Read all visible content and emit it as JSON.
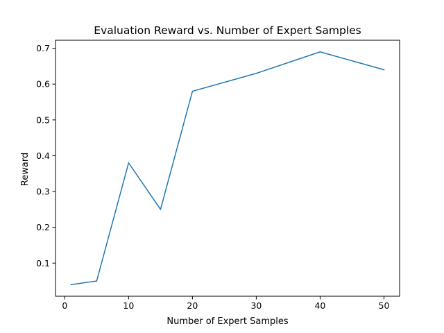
{
  "chart_data": {
    "type": "line",
    "title": "Evaluation Reward vs. Number of Expert Samples",
    "xlabel": "Number of Expert Samples",
    "ylabel": "Reward",
    "x": [
      1,
      5,
      10,
      15,
      20,
      30,
      40,
      50
    ],
    "series": [
      {
        "values": [
          0.04,
          0.05,
          0.38,
          0.25,
          0.58,
          0.63,
          0.69,
          0.64
        ],
        "color": "#1f77b4"
      }
    ],
    "xlim": [
      -1.45,
      52.45
    ],
    "ylim": [
      0.0075,
      0.7225
    ],
    "xticks": [
      0,
      10,
      20,
      30,
      40,
      50
    ],
    "xtick_labels": [
      "0",
      "10",
      "20",
      "30",
      "40",
      "50"
    ],
    "yticks": [
      0.1,
      0.2,
      0.3,
      0.4,
      0.5,
      0.6,
      0.7
    ],
    "ytick_labels": [
      "0.1",
      "0.2",
      "0.3",
      "0.4",
      "0.5",
      "0.6",
      "0.7"
    ],
    "grid": false,
    "legend": false
  }
}
